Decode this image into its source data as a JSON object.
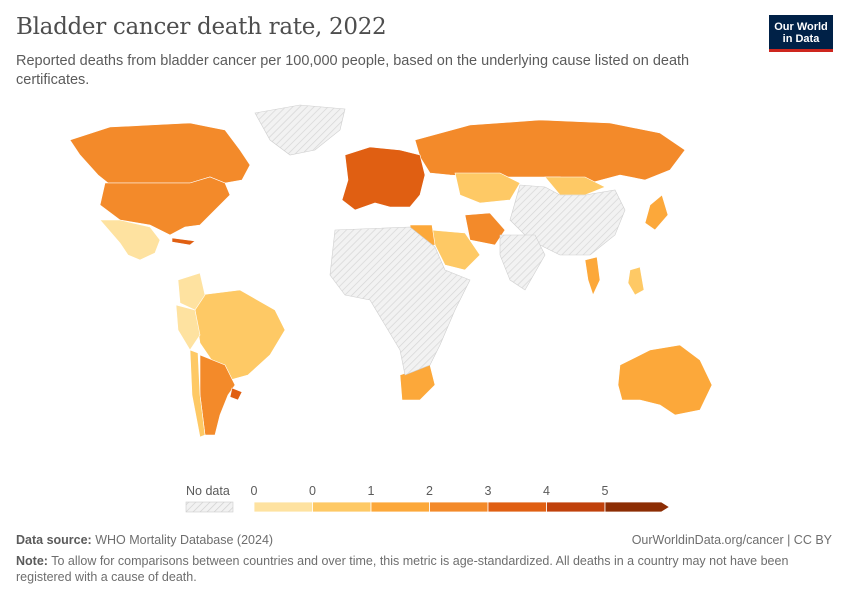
{
  "header": {
    "title": "Bladder cancer death rate, 2022",
    "subtitle": "Reported deaths from bladder cancer per 100,000 people, based on the underlying cause listed on death certificates.",
    "logo_line1": "Our World",
    "logo_line2": "in Data"
  },
  "legend": {
    "no_data_label": "No data",
    "tick_labels": [
      "0",
      "0",
      "1",
      "2",
      "3",
      "4",
      "5"
    ],
    "colors": [
      "#fef9d4",
      "#fee2a0",
      "#fec965",
      "#fca83a",
      "#f38a2a",
      "#e05f12",
      "#c0410b",
      "#8c2d04"
    ],
    "no_data_color": "#eeeeee"
  },
  "map_data": {
    "type": "choropleth",
    "unit": "deaths per 100,000 people",
    "year": "2022",
    "regions": [
      {
        "name": "Canada",
        "bin": 4
      },
      {
        "name": "United States",
        "bin": 4
      },
      {
        "name": "Mexico",
        "bin": 1
      },
      {
        "name": "Cuba",
        "bin": 5
      },
      {
        "name": "Brazil",
        "bin": 2
      },
      {
        "name": "Argentina",
        "bin": 4
      },
      {
        "name": "Uruguay",
        "bin": 5
      },
      {
        "name": "Chile",
        "bin": 2
      },
      {
        "name": "Peru",
        "bin": 1
      },
      {
        "name": "Colombia",
        "bin": 1
      },
      {
        "name": "Russia",
        "bin": 4
      },
      {
        "name": "Kazakhstan",
        "bin": 2
      },
      {
        "name": "Europe",
        "bin": 5
      },
      {
        "name": "Iran",
        "bin": 4
      },
      {
        "name": "Saudi Arabia",
        "bin": 2
      },
      {
        "name": "Egypt",
        "bin": 3
      },
      {
        "name": "Japan",
        "bin": 3
      },
      {
        "name": "Thailand",
        "bin": 3
      },
      {
        "name": "Philippines",
        "bin": 2
      },
      {
        "name": "Australia",
        "bin": 3
      },
      {
        "name": "South Africa",
        "bin": 3
      },
      {
        "name": "Mongolia",
        "bin": 2
      },
      {
        "name": "Greenland",
        "bin": 0
      },
      {
        "name": "China",
        "bin": 0
      },
      {
        "name": "Africa (most)",
        "bin": 0
      },
      {
        "name": "India",
        "bin": 0
      }
    ]
  },
  "footer": {
    "source_label": "Data source:",
    "source_text": "WHO Mortality Database (2024)",
    "credit": "OurWorldinData.org/cancer | CC BY",
    "note_label": "Note:",
    "note_text": "To allow for comparisons between countries and over time, this metric is age-standardized. All deaths in a country may not have been registered with a cause of death."
  }
}
